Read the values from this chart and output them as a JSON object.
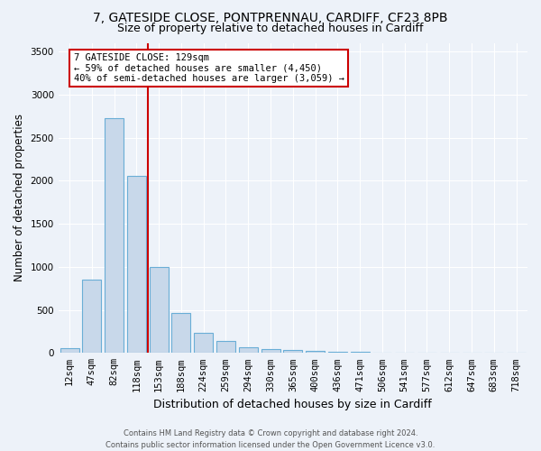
{
  "title_line1": "7, GATESIDE CLOSE, PONTPRENNAU, CARDIFF, CF23 8PB",
  "title_line2": "Size of property relative to detached houses in Cardiff",
  "xlabel": "Distribution of detached houses by size in Cardiff",
  "ylabel": "Number of detached properties",
  "categories": [
    "12sqm",
    "47sqm",
    "82sqm",
    "118sqm",
    "153sqm",
    "188sqm",
    "224sqm",
    "259sqm",
    "294sqm",
    "330sqm",
    "365sqm",
    "400sqm",
    "436sqm",
    "471sqm",
    "506sqm",
    "541sqm",
    "577sqm",
    "612sqm",
    "647sqm",
    "683sqm",
    "718sqm"
  ],
  "values": [
    60,
    850,
    2730,
    2060,
    1000,
    460,
    230,
    140,
    65,
    50,
    30,
    25,
    15,
    10,
    0,
    0,
    0,
    0,
    0,
    0,
    0
  ],
  "bar_color": "#c8d8ea",
  "bar_edge_color": "#6aaed6",
  "vline_color": "#cc0000",
  "vline_x_index": 3,
  "annotation_line1": "7 GATESIDE CLOSE: 129sqm",
  "annotation_line2": "← 59% of detached houses are smaller (4,450)",
  "annotation_line3": "40% of semi-detached houses are larger (3,059) →",
  "annotation_box_color": "#ffffff",
  "annotation_box_edge_color": "#cc0000",
  "ylim": [
    0,
    3600
  ],
  "yticks": [
    0,
    500,
    1000,
    1500,
    2000,
    2500,
    3000,
    3500
  ],
  "footer_line1": "Contains HM Land Registry data © Crown copyright and database right 2024.",
  "footer_line2": "Contains public sector information licensed under the Open Government Licence v3.0.",
  "bg_color": "#edf2f9",
  "plot_bg_color": "#edf2f9",
  "grid_color": "#ffffff",
  "title1_fontsize": 10,
  "title2_fontsize": 9,
  "tick_fontsize": 7.5,
  "ylabel_fontsize": 8.5,
  "xlabel_fontsize": 9,
  "annotation_fontsize": 7.5,
  "footer_fontsize": 6
}
